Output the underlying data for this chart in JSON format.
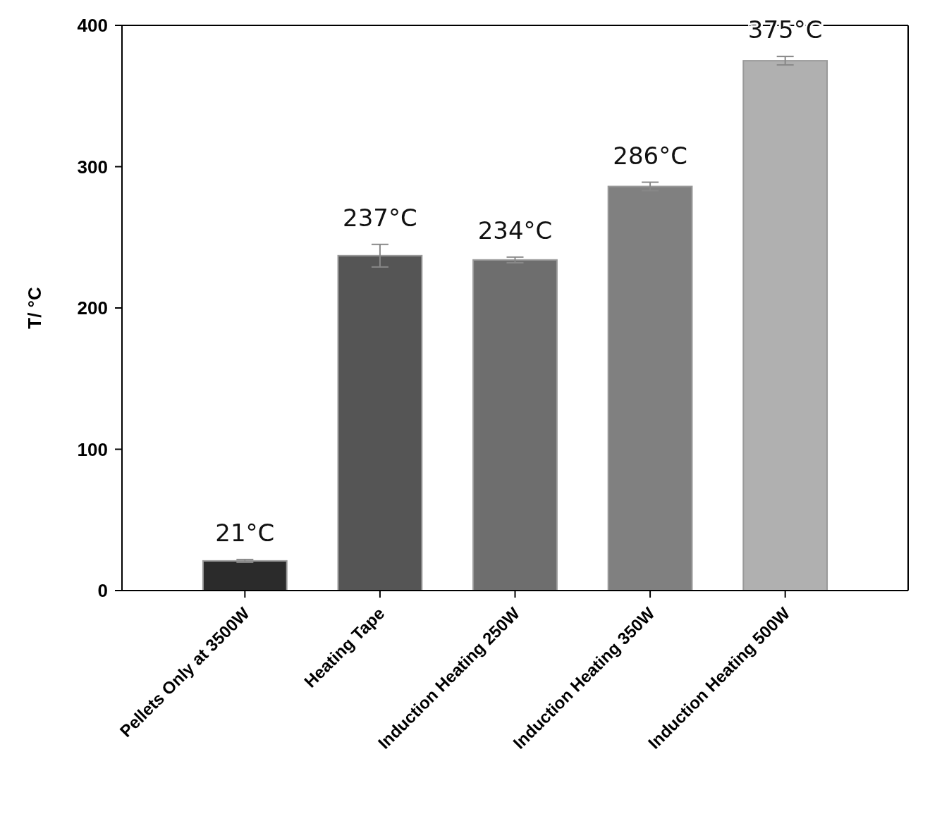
{
  "chart_data": {
    "type": "bar",
    "ylabel": "T/ °C",
    "categories": [
      "Pellets Only at 3500W",
      "Heating Tape",
      "Induction Heating 250W",
      "Induction Heating 350W",
      "Induction Heating 500W"
    ],
    "values": [
      21,
      237,
      234,
      286,
      375
    ],
    "errors": [
      1,
      8,
      2,
      3,
      3
    ],
    "value_labels": [
      "21°C",
      "237°C",
      "234°C",
      "286°C",
      "375°C"
    ],
    "colors": [
      "#2b2b2b",
      "#555555",
      "#6e6e6e",
      "#808080",
      "#b0b0b0"
    ],
    "ylim": [
      0,
      400
    ],
    "yticks": [
      0,
      100,
      200,
      300,
      400
    ],
    "grid": false
  }
}
